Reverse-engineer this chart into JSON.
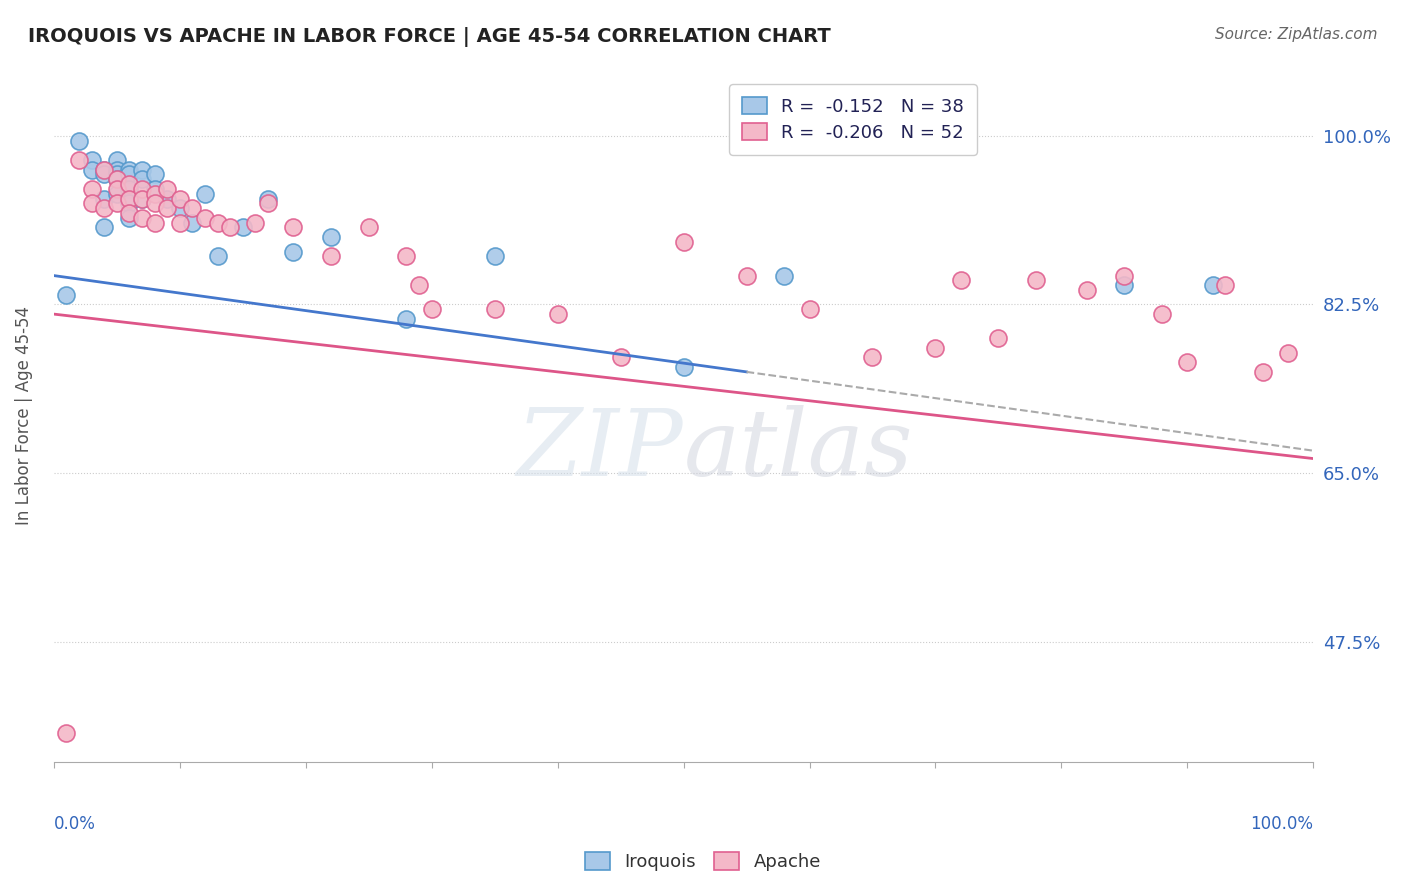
{
  "title": "IROQUOIS VS APACHE IN LABOR FORCE | AGE 45-54 CORRELATION CHART",
  "source": "Source: ZipAtlas.com",
  "ylabel": "In Labor Force | Age 45-54",
  "yticks": [
    0.475,
    0.65,
    0.825,
    1.0
  ],
  "ytick_labels": [
    "47.5%",
    "65.0%",
    "82.5%",
    "100.0%"
  ],
  "xlim": [
    0.0,
    1.0
  ],
  "ylim": [
    0.35,
    1.07
  ],
  "legend_r1": "R =  -0.152   N = 38",
  "legend_r2": "R =  -0.206   N = 52",
  "color_iroquois": "#a8c8e8",
  "color_apache": "#f4b8c8",
  "color_iroquois_edge": "#5599cc",
  "color_apache_edge": "#e06090",
  "color_trend_blue": "#4477cc",
  "color_trend_pink": "#dd5588",
  "color_trend_gray_dash": "#aaaaaa",
  "watermark_zip": "ZIP",
  "watermark_atlas": "atlas",
  "iroquois_x": [
    0.01,
    0.02,
    0.03,
    0.03,
    0.04,
    0.04,
    0.04,
    0.04,
    0.05,
    0.05,
    0.05,
    0.05,
    0.05,
    0.06,
    0.06,
    0.06,
    0.06,
    0.06,
    0.07,
    0.07,
    0.07,
    0.08,
    0.08,
    0.09,
    0.1,
    0.11,
    0.12,
    0.13,
    0.15,
    0.17,
    0.19,
    0.22,
    0.28,
    0.35,
    0.5,
    0.58,
    0.85,
    0.92
  ],
  "iroquois_y": [
    0.835,
    0.995,
    0.975,
    0.965,
    0.965,
    0.96,
    0.935,
    0.905,
    0.975,
    0.965,
    0.96,
    0.955,
    0.94,
    0.965,
    0.96,
    0.945,
    0.93,
    0.915,
    0.965,
    0.955,
    0.935,
    0.96,
    0.945,
    0.935,
    0.925,
    0.91,
    0.94,
    0.875,
    0.905,
    0.935,
    0.88,
    0.895,
    0.81,
    0.875,
    0.76,
    0.855,
    0.845,
    0.845
  ],
  "apache_x": [
    0.01,
    0.02,
    0.03,
    0.03,
    0.04,
    0.04,
    0.05,
    0.05,
    0.05,
    0.06,
    0.06,
    0.06,
    0.07,
    0.07,
    0.07,
    0.08,
    0.08,
    0.08,
    0.09,
    0.09,
    0.1,
    0.1,
    0.11,
    0.12,
    0.13,
    0.14,
    0.16,
    0.17,
    0.19,
    0.22,
    0.25,
    0.28,
    0.29,
    0.3,
    0.35,
    0.4,
    0.45,
    0.5,
    0.55,
    0.6,
    0.65,
    0.7,
    0.72,
    0.75,
    0.78,
    0.82,
    0.85,
    0.88,
    0.9,
    0.93,
    0.96,
    0.98
  ],
  "apache_y": [
    0.38,
    0.975,
    0.945,
    0.93,
    0.965,
    0.925,
    0.955,
    0.945,
    0.93,
    0.95,
    0.935,
    0.92,
    0.945,
    0.935,
    0.915,
    0.94,
    0.93,
    0.91,
    0.945,
    0.925,
    0.935,
    0.91,
    0.925,
    0.915,
    0.91,
    0.905,
    0.91,
    0.93,
    0.905,
    0.875,
    0.905,
    0.875,
    0.845,
    0.82,
    0.82,
    0.815,
    0.77,
    0.89,
    0.855,
    0.82,
    0.77,
    0.78,
    0.85,
    0.79,
    0.85,
    0.84,
    0.855,
    0.815,
    0.765,
    0.845,
    0.755,
    0.775
  ]
}
